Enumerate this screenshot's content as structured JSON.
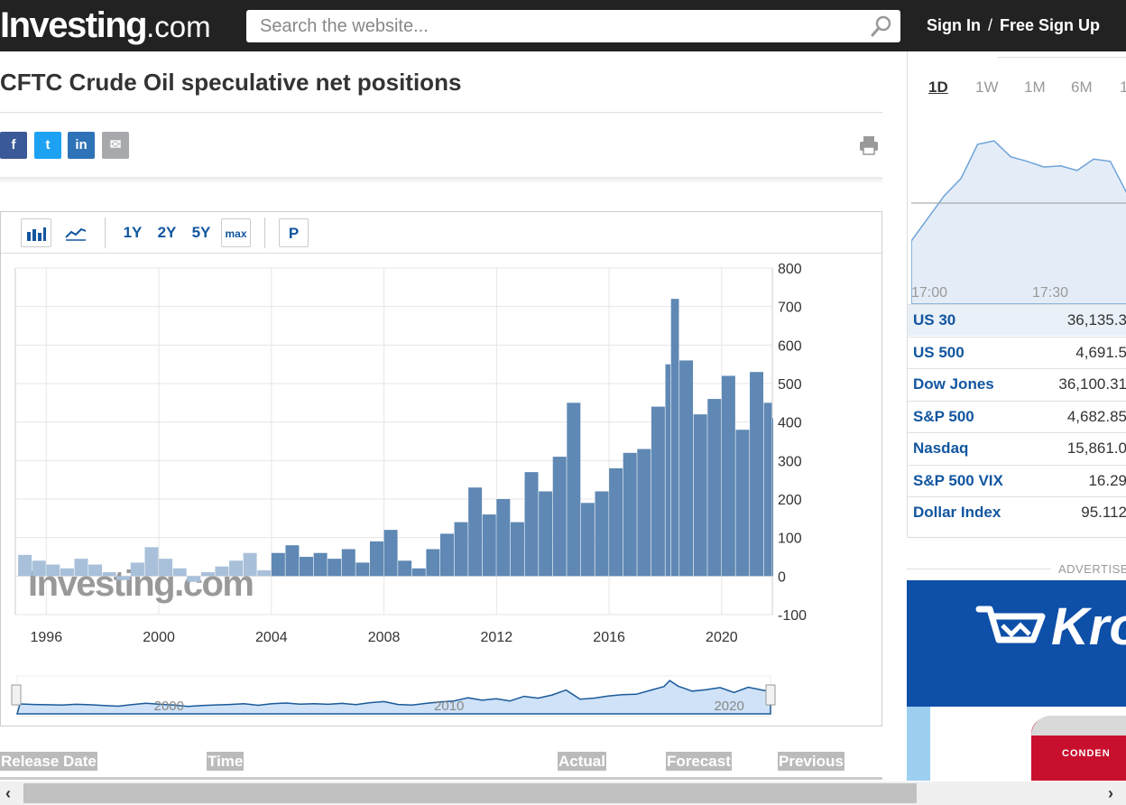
{
  "header": {
    "logo_main": "Investing",
    "logo_suffix": ".com",
    "search_placeholder": "Search the website...",
    "sign_in": "Sign In",
    "separator": "/",
    "sign_up": "Free Sign Up"
  },
  "page": {
    "title": "CFTC Crude Oil speculative net positions"
  },
  "share": [
    {
      "name": "facebook-share-button",
      "label": "f",
      "color": "#3b5998"
    },
    {
      "name": "twitter-share-button",
      "label": "t",
      "color": "#1da1f2"
    },
    {
      "name": "linkedin-share-button",
      "label": "in",
      "color": "#2e73b8"
    },
    {
      "name": "email-share-button",
      "label": "✉",
      "color": "#a7a9ac"
    }
  ],
  "chart_toolbar": {
    "ranges": [
      "1Y",
      "2Y",
      "5Y",
      "max"
    ],
    "p_label": "P"
  },
  "chart_data": {
    "type": "bar",
    "title": "",
    "xlabel": "",
    "ylabel": "",
    "x_ticks": [
      "1996",
      "2000",
      "2004",
      "2008",
      "2012",
      "2016",
      "2020"
    ],
    "y_ticks": [
      "800",
      "700",
      "600",
      "500",
      "400",
      "300",
      "200",
      "100",
      "0",
      "-100"
    ],
    "ylim": [
      -100,
      800
    ],
    "xlim": [
      1994.9,
      2021.8
    ],
    "grid": true,
    "watermark": "Investing.com",
    "series": [
      {
        "x": [
          1995.0,
          1995.5,
          1996.0,
          1996.5,
          1997.0,
          1997.5,
          1998.0,
          1998.5,
          1999.0,
          1999.5,
          2000.0,
          2000.5,
          2001.0,
          2001.5,
          2002.0,
          2002.5,
          2003.0,
          2003.5,
          2004.0,
          2004.5,
          2005.0,
          2005.5,
          2006.0,
          2006.5,
          2007.0,
          2007.5,
          2008.0,
          2008.5,
          2009.0,
          2009.5,
          2010.0,
          2010.5,
          2011.0,
          2011.5,
          2012.0,
          2012.5,
          2013.0,
          2013.5,
          2014.0,
          2014.5,
          2015.0,
          2015.5,
          2016.0,
          2016.5,
          2017.0,
          2017.5,
          2018.0,
          2018.2,
          2018.5,
          2019.0,
          2019.5,
          2020.0,
          2020.5,
          2021.0,
          2021.5,
          2021.8
        ],
        "values": [
          55,
          40,
          30,
          20,
          45,
          30,
          10,
          -10,
          35,
          75,
          45,
          20,
          -15,
          10,
          25,
          40,
          60,
          15,
          60,
          80,
          50,
          60,
          45,
          70,
          35,
          90,
          120,
          40,
          20,
          70,
          110,
          140,
          230,
          160,
          200,
          140,
          270,
          220,
          310,
          450,
          190,
          220,
          280,
          320,
          330,
          440,
          550,
          720,
          560,
          420,
          460,
          520,
          380,
          530,
          450,
          410
        ]
      }
    ],
    "navigator": {
      "labels": [
        "2000",
        "2010",
        "2020"
      ]
    }
  },
  "table_headers": [
    "Release Date",
    "Time",
    "Actual",
    "Forecast",
    "Previous"
  ],
  "sidebar": {
    "tabs": [
      "1D",
      "1W",
      "1M",
      "6M",
      "1"
    ],
    "active_tab": "1D",
    "mini_chart_times": [
      "17:00",
      "17:30"
    ],
    "mini_chart_values": [
      0.0,
      0.2,
      0.4,
      0.55,
      0.85,
      0.88,
      0.74,
      0.7,
      0.65,
      0.66,
      0.62,
      0.72,
      0.7,
      0.42
    ],
    "quotes": [
      {
        "name": "US 30",
        "value": "36,135.3"
      },
      {
        "name": "US 500",
        "value": "4,691.5"
      },
      {
        "name": "Dow Jones",
        "value": "36,100.31"
      },
      {
        "name": "S&P 500",
        "value": "4,682.85"
      },
      {
        "name": "Nasdaq",
        "value": "15,861.0"
      },
      {
        "name": "S&P 500 VIX",
        "value": "16.29"
      },
      {
        "name": "Dollar Index",
        "value": "95.112"
      }
    ]
  },
  "ad": {
    "label": "ADVERTISE",
    "brand": "Kro",
    "can_text": "CONDEN"
  },
  "colors": {
    "bar_positive": "#5f88b4",
    "bar_negative": "#5f88b4",
    "bar_light": "#a8c0da",
    "link_blue": "#1256a0",
    "header_bg": "#222222"
  }
}
